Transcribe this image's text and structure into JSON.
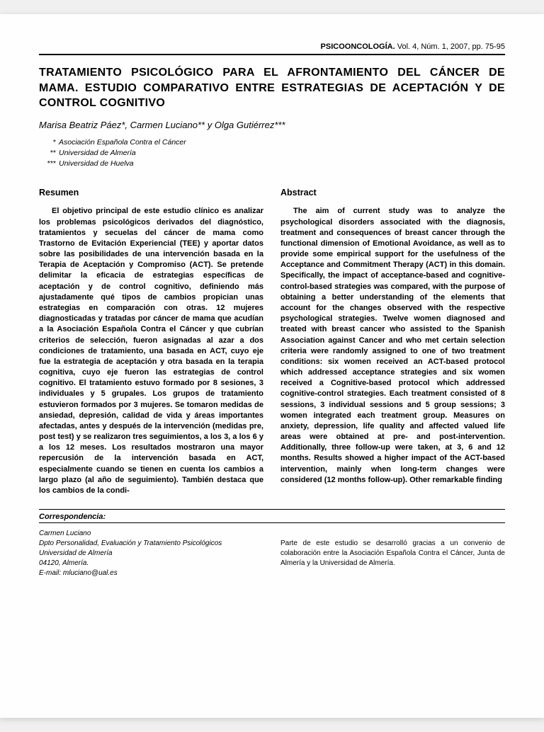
{
  "journal": {
    "name": "PSICOONCOLOGÍA.",
    "meta": "Vol. 4, Núm. 1, 2007, pp. 75-95"
  },
  "title": "TRATAMIENTO PSICOLÓGICO PARA EL AFRONTAMIENTO DEL CÁNCER DE MAMA. ESTUDIO COMPARATIVO ENTRE ESTRATEGIAS DE ACEPTACIÓN Y DE CONTROL COGNITIVO",
  "authors": "Marisa Beatriz Páez*, Carmen Luciano** y Olga Gutiérrez***",
  "affiliations": [
    {
      "mark": "*",
      "text": "Asociación Española Contra el Cáncer"
    },
    {
      "mark": "**",
      "text": "Universidad de Almería"
    },
    {
      "mark": "***",
      "text": "Universidad de Huelva"
    }
  ],
  "left": {
    "heading": "Resumen",
    "body": "El objetivo principal de este estudio clínico es analizar los problemas psicológicos derivados del diagnóstico, tratamientos y secuelas del cáncer de mama como Trastorno de Evitación Experiencial (TEE) y aportar datos sobre las posibilidades de una intervención basada en la Terapia de Aceptación y Compromiso (ACT). Se pretende delimitar la eficacia de estrategias específicas de aceptación y de control cognitivo, definiendo más ajustadamente qué tipos de cambios propician unas estrategias en comparación con otras. 12 mujeres diagnosticadas y tratadas por cáncer de mama que acudían a la Asociación Española Contra el Cáncer y que cubrían criterios de selección, fueron asignadas al azar a dos condiciones de tratamiento, una basada en ACT, cuyo eje fue la estrategia de aceptación y otra basada en la terapia cognitiva, cuyo eje fueron las estrategias de control cognitivo. El tratamiento estuvo formado por 8 sesiones, 3 individuales y 5 grupales. Los grupos de tratamiento estuvieron formados por 3 mujeres. Se tomaron medidas de ansiedad, depresión, calidad de vida y áreas importantes afectadas, antes y después de la intervención (medidas pre, post test) y se realizaron tres seguimientos, a los 3, a los 6 y a los 12 meses. Los resultados mostraron una mayor repercusión de la intervención basada en ACT, especialmente cuando se tienen en cuenta los cambios a largo plazo (al año de seguimiento). También destaca que los cambios de la condi-"
  },
  "right": {
    "heading": "Abstract",
    "body": "The aim of current study was to analyze the psychological disorders associated with the diagnosis, treatment and consequences of breast cancer through the functional dimension of Emotional Avoidance, as well as to provide some empirical support for the usefulness of the Acceptance and Commitment Therapy (ACT) in this domain. Specifically, the impact of acceptance-based and cognitive-control-based strategies was compared, with the purpose of obtaining a better understanding of the elements that account for the changes observed with the respective psychological strategies. Twelve women diagnosed and treated with breast cancer who assisted to the Spanish Association against Cancer and who met certain selection criteria were randomly assigned to one of two treatment conditions: six women received an ACT-based protocol which addressed acceptance strategies and six women received a Cognitive-based protocol which addressed cognitive-control strategies. Each treatment consisted of 8 sessions, 3 individual sessions and 5 group sessions; 3 women integrated each treatment group. Measures on anxiety, depression, life quality and affected valued life areas were obtained at pre- and post-intervention. Additionally, three follow-up were taken, at 3, 6 and 12 months. Results showed a higher impact of the ACT-based intervention, mainly when long-term changes were considered (12 months follow-up). Other remarkable finding"
  },
  "correspondence": {
    "heading": "Correspondencia:",
    "lines": [
      "Carmen Luciano",
      "Dpto Personalidad, Evaluación y Tratamiento Psicológicos",
      "Universidad de Almería",
      "04120, Almería.",
      "E-mail: mluciano@ual.es"
    ]
  },
  "footer_note": "Parte de este estudio se desarrolló gracias a un convenio de colaboración entre la Asociación Española Contra el Cáncer, Junta de Almería y la Universidad de Almería."
}
